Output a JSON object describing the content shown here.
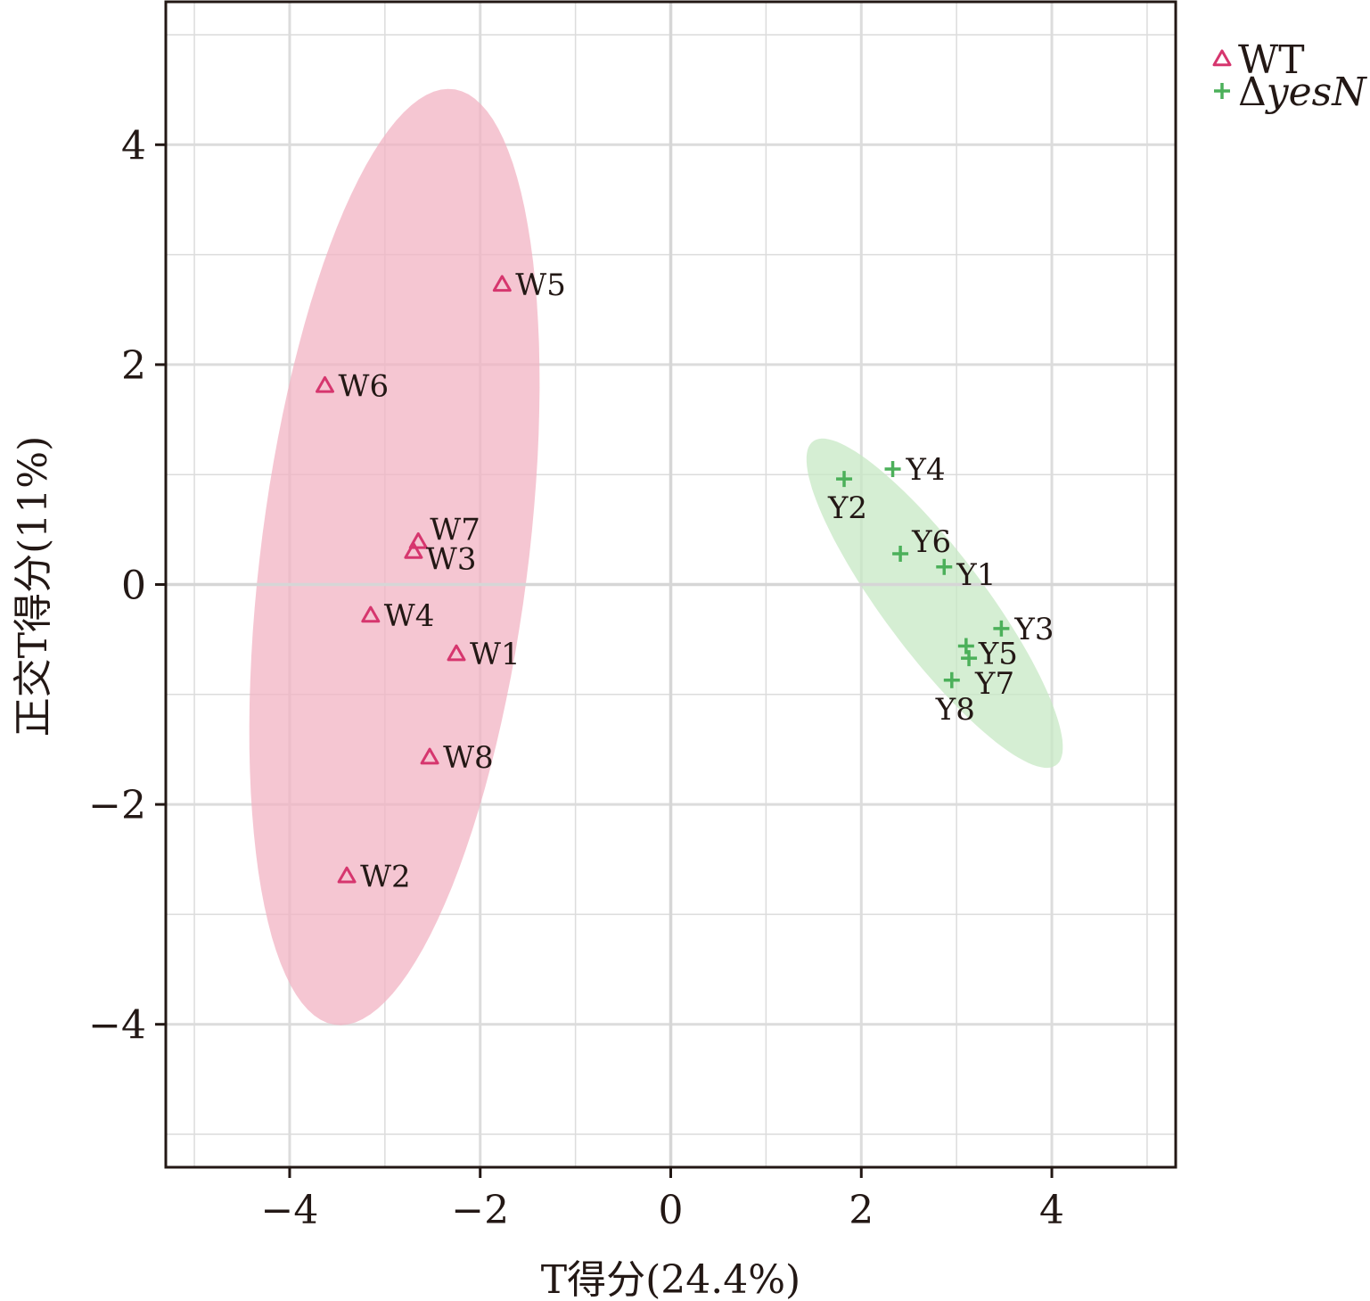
{
  "chart_data": {
    "type": "scatter",
    "xlabel": "T得分(24.4%)",
    "ylabel": "正交T得分(11%)",
    "xlim": [
      -5.3,
      5.3
    ],
    "ylim": [
      -5.3,
      5.3
    ],
    "xticks": [
      -4,
      -2,
      0,
      2,
      4
    ],
    "yticks": [
      -4,
      -2,
      0,
      2,
      4
    ],
    "xtick_labels": [
      "−4",
      "−2",
      "0",
      "2",
      "4"
    ],
    "ytick_labels": [
      "−4",
      "−2",
      "0",
      "2",
      "4"
    ],
    "grid": true,
    "legend_position": "top-right, outside plot",
    "series": [
      {
        "name": "WT",
        "legend_prefix": "",
        "legend_italic": "",
        "marker": "triangle",
        "color": "#d6366e",
        "fill": "#f2b3c3",
        "ellipse": {
          "cx": -2.9,
          "cy": 0.25,
          "rx": 4.3,
          "ry": 1.4,
          "angle_deg": 81.5
        },
        "points": [
          {
            "label": "W1",
            "x": -2.25,
            "y": -0.63,
            "label_pos": "right"
          },
          {
            "label": "W2",
            "x": -3.4,
            "y": -2.65,
            "label_pos": "right"
          },
          {
            "label": "W3",
            "x": -2.7,
            "y": 0.3,
            "label_pos": "below-right"
          },
          {
            "label": "W4",
            "x": -3.15,
            "y": -0.28,
            "label_pos": "right"
          },
          {
            "label": "W5",
            "x": -1.77,
            "y": 2.73,
            "label_pos": "right"
          },
          {
            "label": "W6",
            "x": -3.63,
            "y": 1.81,
            "label_pos": "right"
          },
          {
            "label": "W7",
            "x": -2.65,
            "y": 0.39,
            "label_pos": "above-right"
          },
          {
            "label": "W8",
            "x": -2.53,
            "y": -1.57,
            "label_pos": "right"
          }
        ]
      },
      {
        "name": "ΔyesN",
        "legend_prefix": "Δ",
        "legend_italic": "yesN",
        "marker": "plus",
        "color": "#4cb05a",
        "fill": "#c7e8c4",
        "ellipse": {
          "cx": 2.77,
          "cy": -0.17,
          "rx": 1.95,
          "ry": 0.5,
          "angle_deg": -48.5
        },
        "points": [
          {
            "label": "Y1",
            "x": 2.87,
            "y": 0.16,
            "label_pos": "below-right"
          },
          {
            "label": "Y2",
            "x": 1.82,
            "y": 0.96,
            "label_pos": "below"
          },
          {
            "label": "Y3",
            "x": 3.47,
            "y": -0.4,
            "label_pos": "right"
          },
          {
            "label": "Y4",
            "x": 2.33,
            "y": 1.05,
            "label_pos": "right"
          },
          {
            "label": "Y5",
            "x": 3.1,
            "y": -0.56,
            "label_pos": "below-right"
          },
          {
            "label": "Y6",
            "x": 2.41,
            "y": 0.28,
            "label_pos": "above-right"
          },
          {
            "label": "Y7",
            "x": 3.13,
            "y": -0.67,
            "label_pos": "below-right-far"
          },
          {
            "label": "Y8",
            "x": 2.95,
            "y": -0.87,
            "label_pos": "below"
          }
        ]
      }
    ]
  }
}
